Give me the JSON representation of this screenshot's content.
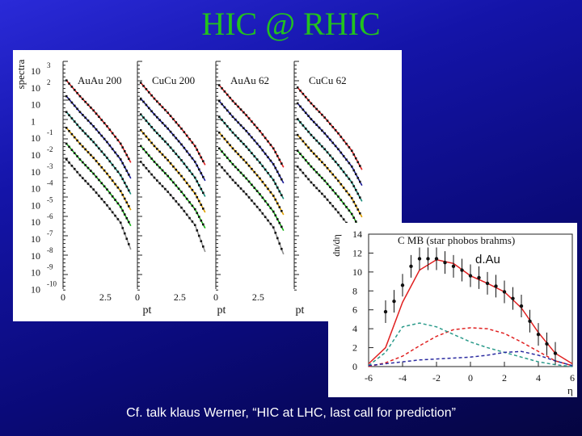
{
  "slide": {
    "title": "HIC @ RHIC",
    "caption": "Cf. talk klaus Werner, “HIC at LHC, last call for prediction”"
  },
  "chart_data": [
    {
      "type": "line",
      "ylabel": "spectra",
      "xlabel": "pt",
      "y_scale": "log",
      "yticks": [
        {
          "base": "10",
          "exp": "3"
        },
        {
          "base": "10",
          "exp": "2"
        },
        {
          "base": "10",
          "exp": ""
        },
        {
          "base": "1",
          "exp": ""
        },
        {
          "base": "10",
          "exp": "-1"
        },
        {
          "base": "10",
          "exp": "-2"
        },
        {
          "base": "10",
          "exp": "-3"
        },
        {
          "base": "10",
          "exp": "-4"
        },
        {
          "base": "10",
          "exp": "-5"
        },
        {
          "base": "10",
          "exp": "-6"
        },
        {
          "base": "10",
          "exp": "-7"
        },
        {
          "base": "10",
          "exp": "-8"
        },
        {
          "base": "10",
          "exp": "-9"
        },
        {
          "base": "10",
          "exp": "-10"
        }
      ],
      "xticks": [
        "0",
        "2.5"
      ],
      "xlim": [
        0,
        4.2
      ],
      "ylim_exp": [
        -10.5,
        3.6
      ],
      "panels": [
        "AuAu 200",
        "CuCu 200",
        "AuAu 62",
        "CuCu 62"
      ],
      "series_colors": [
        "#e02020",
        "#1a1a9a",
        "#168a78",
        "#e0a000",
        "#16b416",
        "#909090"
      ],
      "series": [
        {
          "color": "#e02020",
          "log_y": [
            2.7,
            1.7,
            0.8,
            -0.2,
            -1.3,
            -2.5
          ]
        },
        {
          "color": "#1a1a9a",
          "log_y": [
            1.7,
            0.7,
            -0.2,
            -1.2,
            -2.3,
            -3.5
          ]
        },
        {
          "color": "#168a78",
          "log_y": [
            0.7,
            -0.3,
            -1.2,
            -2.2,
            -3.3,
            -4.5
          ]
        },
        {
          "color": "#e0a000",
          "log_y": [
            -0.3,
            -1.3,
            -2.2,
            -3.2,
            -4.3,
            -5.5
          ]
        },
        {
          "color": "#16b416",
          "log_y": [
            -1.3,
            -2.3,
            -3.2,
            -4.2,
            -5.3,
            -6.5
          ]
        },
        {
          "color": "#909090",
          "log_y": [
            -2.3,
            -3.3,
            -4.2,
            -5.2,
            -6.3,
            -8.0
          ]
        }
      ],
      "pt_points": [
        0.2,
        1.0,
        1.8,
        2.6,
        3.4,
        4.0
      ]
    },
    {
      "type": "line",
      "ylabel": "dn/dη",
      "xlabel": "η",
      "legend_text": "C    MB    (star phobos brahms)",
      "system_label": "d.Au",
      "xlim": [
        -6,
        6
      ],
      "ylim": [
        0,
        14
      ],
      "xticks": [
        "-6",
        "-4",
        "-2",
        "0",
        "2",
        "4",
        "6"
      ],
      "yticks": [
        "0",
        "2",
        "4",
        "6",
        "8",
        "10",
        "12",
        "14"
      ],
      "series": [
        {
          "name": "total",
          "color": "#e02020",
          "dash": "",
          "eta": [
            -6,
            -5,
            -4,
            -3,
            -2,
            -1,
            0,
            1,
            2,
            3,
            4,
            5,
            6
          ],
          "values": [
            0.3,
            2.0,
            6.8,
            10.2,
            11.3,
            10.9,
            9.6,
            8.8,
            7.9,
            6.2,
            3.6,
            1.4,
            0.3
          ]
        },
        {
          "name": "red-dashed",
          "color": "#e02020",
          "dash": "4,3",
          "eta": [
            -6,
            -5,
            -4,
            -3,
            -2,
            -1,
            0,
            1,
            2,
            3,
            4,
            5,
            6
          ],
          "values": [
            0.0,
            0.4,
            1.1,
            2.2,
            3.2,
            3.9,
            4.1,
            4.0,
            3.5,
            2.6,
            1.6,
            0.6,
            0.1
          ]
        },
        {
          "name": "teal-dashed",
          "color": "#2a9a8a",
          "dash": "4,3",
          "eta": [
            -6,
            -5,
            -4,
            -3,
            -2,
            -1,
            0,
            1,
            2,
            3,
            4,
            5,
            6
          ],
          "values": [
            0.1,
            1.5,
            4.2,
            4.6,
            4.2,
            3.4,
            2.6,
            2.0,
            1.5,
            1.0,
            0.5,
            0.2,
            0.0
          ]
        },
        {
          "name": "blue-dashed",
          "color": "#2a2aa0",
          "dash": "4,3",
          "eta": [
            -6,
            -5,
            -4,
            -3,
            -2,
            -1,
            0,
            1,
            2,
            3,
            4,
            5,
            6
          ],
          "values": [
            0.1,
            0.3,
            0.5,
            0.7,
            0.8,
            0.9,
            1.0,
            1.2,
            1.5,
            1.6,
            1.2,
            0.6,
            0.1
          ]
        },
        {
          "name": "data",
          "color": "#111111",
          "markers": true,
          "eta": [
            -5,
            -4.5,
            -4,
            -3.5,
            -3,
            -2.5,
            -2,
            -1.5,
            -1,
            -0.5,
            0,
            0.5,
            1,
            1.5,
            2,
            2.5,
            3,
            3.5,
            4,
            4.5,
            5
          ],
          "values": [
            5.8,
            6.9,
            8.6,
            10.6,
            11.4,
            11.4,
            11.4,
            11.0,
            10.6,
            10.2,
            9.6,
            9.4,
            8.8,
            8.5,
            7.9,
            7.2,
            6.4,
            4.8,
            3.4,
            2.4,
            1.4
          ]
        }
      ]
    }
  ]
}
